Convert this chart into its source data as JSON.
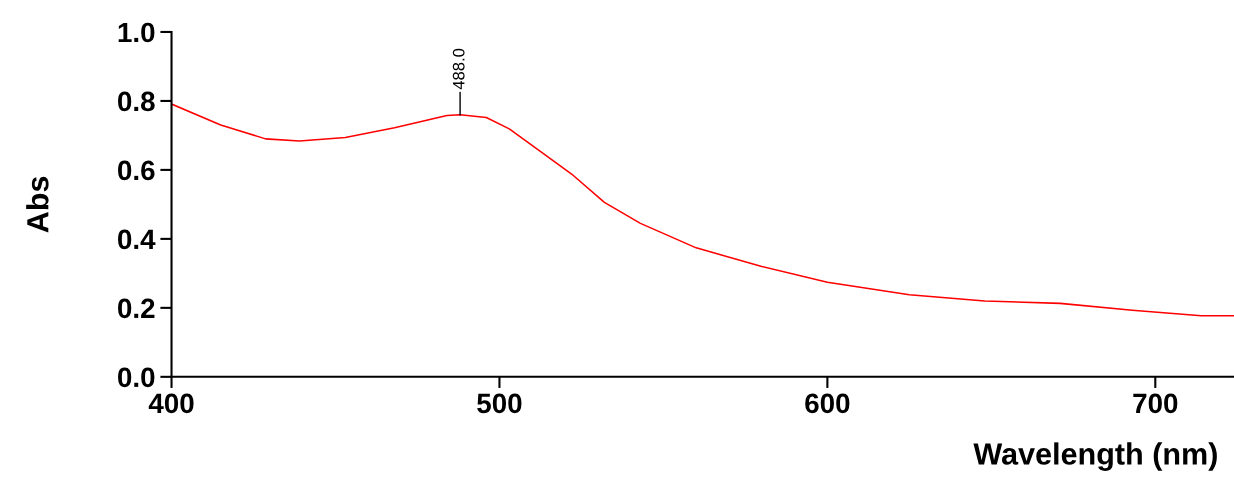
{
  "chart_data": {
    "type": "line",
    "xlabel": "Wavelength (nm)",
    "ylabel": "Abs",
    "x": [
      400,
      415,
      428.7,
      439,
      453,
      468,
      484,
      488,
      496,
      503,
      511,
      522,
      532,
      543,
      560,
      580,
      600,
      625,
      648,
      671,
      693,
      714,
      724
    ],
    "series": [
      {
        "color": "#ff0000",
        "values": [
          0.791,
          0.73,
          0.69,
          0.684,
          0.694,
          0.722,
          0.758,
          0.76,
          0.752,
          0.719,
          0.664,
          0.588,
          0.506,
          0.445,
          0.374,
          0.32,
          0.274,
          0.238,
          0.22,
          0.213,
          0.193,
          0.177,
          0.177
        ]
      }
    ],
    "xlim": [
      400,
      724
    ],
    "ylim": [
      0,
      1.0
    ],
    "xticks": [
      400,
      500,
      600,
      700
    ],
    "yticks": [
      {
        "value": 0,
        "label": "0.0"
      },
      {
        "value": 0.2,
        "label": "0.2"
      },
      {
        "value": 0.4,
        "label": "0.4"
      },
      {
        "value": 0.6,
        "label": "0.6"
      },
      {
        "value": 0.8,
        "label": "0.8"
      },
      {
        "value": 1.0,
        "label": "1.0"
      }
    ],
    "annotations": [
      {
        "text": "488.0",
        "x": 488,
        "y": 0.76
      }
    ],
    "grid": false,
    "legend": false,
    "marker": "none",
    "line_style": "solid"
  }
}
